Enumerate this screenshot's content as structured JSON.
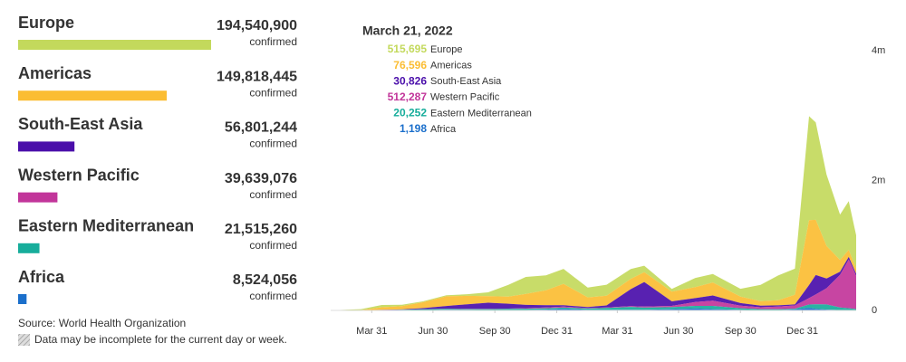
{
  "chart_data": [
    {
      "type": "bar",
      "orientation": "horizontal",
      "categories": [
        "Europe",
        "Americas",
        "South-East Asia",
        "Western Pacific",
        "Eastern Mediterranean",
        "Africa"
      ],
      "values": [
        194540900,
        149818445,
        56801244,
        39639076,
        21515260,
        8524056
      ],
      "value_labels": [
        "194,540,900",
        "149,818,445",
        "56,801,244",
        "39,639,076",
        "21,515,260",
        "8,524,056"
      ],
      "colors": [
        "#c3d95c",
        "#fbbd33",
        "#4a0eaa",
        "#c2359a",
        "#17ad9b",
        "#1b6fcb"
      ],
      "value_caption": "confirmed"
    },
    {
      "type": "area",
      "stacked": true,
      "x": [
        "2020-01-30",
        "2020-03-15",
        "2020-04-15",
        "2020-05-15",
        "2020-06-15",
        "2020-07-20",
        "2020-08-20",
        "2020-09-20",
        "2020-10-20",
        "2020-11-15",
        "2020-12-15",
        "2021-01-10",
        "2021-02-15",
        "2021-03-15",
        "2021-04-20",
        "2021-05-10",
        "2021-06-20",
        "2021-07-25",
        "2021-08-20",
        "2021-09-30",
        "2021-10-30",
        "2021-11-25",
        "2021-12-20",
        "2022-01-10",
        "2022-01-20",
        "2022-02-05",
        "2022-02-25",
        "2022-03-10",
        "2022-03-21"
      ],
      "series": [
        {
          "name": "Europe",
          "color": "#c3d95c",
          "values": [
            0,
            15000,
            35000,
            20000,
            15000,
            15000,
            25000,
            60000,
            180000,
            260000,
            230000,
            230000,
            150000,
            170000,
            150000,
            100000,
            40000,
            140000,
            130000,
            120000,
            250000,
            380000,
            400000,
            1600000,
            1500000,
            1100000,
            700000,
            750000,
            515695
          ]
        },
        {
          "name": "Americas",
          "color": "#fbbd33",
          "values": [
            0,
            3000,
            40000,
            50000,
            90000,
            150000,
            130000,
            100000,
            110000,
            170000,
            230000,
            330000,
            150000,
            150000,
            160000,
            150000,
            150000,
            170000,
            200000,
            100000,
            70000,
            80000,
            150000,
            1000000,
            850000,
            500000,
            180000,
            110000,
            76596
          ]
        },
        {
          "name": "South-East Asia",
          "color": "#4a0eaa",
          "values": [
            0,
            100,
            1500,
            5000,
            15000,
            40000,
            70000,
            95000,
            75000,
            50000,
            35000,
            22000,
            15000,
            30000,
            260000,
            380000,
            70000,
            60000,
            80000,
            40000,
            25000,
            20000,
            15000,
            200000,
            300000,
            150000,
            50000,
            40000,
            30826
          ]
        },
        {
          "name": "Western Pacific",
          "color": "#c2359a",
          "values": [
            2000,
            500,
            1500,
            1500,
            2000,
            3000,
            5000,
            4000,
            5000,
            8000,
            10000,
            15000,
            7000,
            8000,
            12000,
            15000,
            20000,
            60000,
            80000,
            40000,
            30000,
            40000,
            50000,
            100000,
            150000,
            250000,
            500000,
            750000,
            512287
          ]
        },
        {
          "name": "Eastern Mediterranean",
          "color": "#17ad9b",
          "values": [
            0,
            1500,
            5000,
            8000,
            15000,
            15000,
            12000,
            15000,
            18000,
            20000,
            22000,
            18000,
            20000,
            30000,
            45000,
            35000,
            30000,
            40000,
            50000,
            25000,
            15000,
            12000,
            12000,
            50000,
            70000,
            80000,
            40000,
            30000,
            20252
          ]
        },
        {
          "name": "Africa",
          "color": "#1b6fcb",
          "values": [
            0,
            50,
            600,
            1500,
            3000,
            10000,
            8000,
            5000,
            5000,
            7000,
            12000,
            25000,
            9000,
            8000,
            10000,
            8000,
            20000,
            30000,
            20000,
            8000,
            4000,
            6000,
            15000,
            40000,
            25000,
            12000,
            6000,
            3000,
            1198
          ]
        }
      ],
      "xlim": [
        "2020-01-30",
        "2022-03-21"
      ],
      "xticks": [
        {
          "value": "2020-03-31",
          "label": "Mar 31"
        },
        {
          "value": "2020-06-30",
          "label": "Jun 30"
        },
        {
          "value": "2020-09-30",
          "label": "Sep 30"
        },
        {
          "value": "2020-12-31",
          "label": "Dec 31"
        },
        {
          "value": "2021-03-31",
          "label": "Mar 31"
        },
        {
          "value": "2021-06-30",
          "label": "Jun 30"
        },
        {
          "value": "2021-09-30",
          "label": "Sep 30"
        },
        {
          "value": "2021-12-31",
          "label": "Dec 31"
        }
      ],
      "ylim": [
        0,
        4200000
      ],
      "yticks": [
        0,
        {
          "value": 2000000,
          "label": "2m"
        },
        {
          "value": 4000000,
          "label": "4m"
        }
      ],
      "tooltip": {
        "date": "March 21, 2022",
        "value_labels": [
          "515,695",
          "76,596",
          "30,826",
          "512,287",
          "20,252",
          "1,198"
        ]
      }
    }
  ],
  "footnotes": {
    "source": "Source: World Health Organization",
    "note": "Data may be incomplete for the current day or week."
  }
}
